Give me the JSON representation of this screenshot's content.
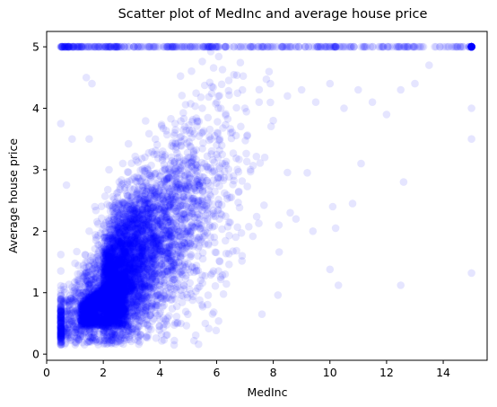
{
  "chart_data": {
    "type": "scatter",
    "title": "Scatter plot of MedInc and average house price",
    "xlabel": "MedInc",
    "ylabel": "Average house price",
    "xlim": [
      0.0,
      15.55
    ],
    "ylim": [
      -0.1,
      5.25
    ],
    "xticks": [
      0,
      2,
      4,
      6,
      8,
      10,
      12,
      14
    ],
    "yticks": [
      0,
      1,
      2,
      3,
      4,
      5
    ],
    "marker_color": "#0000ff",
    "marker_alpha": 0.1,
    "grid": false,
    "legend": "none",
    "points": {
      "x": [
        0.5,
        0.5,
        0.5,
        0.6,
        0.7,
        0.9,
        1.1,
        1.3,
        1.4,
        1.5,
        1.5,
        1.5,
        1.6,
        1.7,
        1.8,
        2.0,
        2.2,
        2.3,
        2.5,
        2.6,
        2.8,
        3.0,
        3.2,
        3.5,
        3.8,
        4.0,
        4.3,
        4.5,
        5.0,
        5.5,
        5.8,
        6.0,
        6.5,
        7.0,
        7.5,
        8.0,
        8.5,
        9.0,
        9.5,
        10.0,
        10.5,
        11.0,
        11.5,
        12.0,
        12.5,
        13.0,
        13.5,
        14.0,
        14.5,
        15.0,
        0.6,
        0.8,
        1.0,
        1.2,
        1.9,
        2.1,
        2.4,
        2.7,
        2.9,
        3.1,
        3.3,
        3.6,
        3.9,
        4.2,
        4.6,
        4.9,
        5.3,
        5.7,
        6.2,
        6.6,
        7.2,
        7.7,
        1.0,
        1.5,
        2.0,
        2.5,
        3.0,
        3.5,
        4.0,
        1.2,
        1.8,
        2.3,
        2.8,
        3.3,
        3.8,
        4.4,
        5.1,
        5.6,
        6.1,
        1.4,
        2.2,
        2.9,
        3.7,
        4.8,
        5.4,
        6.3,
        6.9,
        7.6,
        8.2,
        8.8,
        9.4,
        10.1,
        10.2,
        10.8,
        11.1,
        12.5,
        15.0,
        15.0,
        15.0,
        15.0,
        15.0,
        10.0,
        10.3,
        9.2,
        8.6,
        12.6,
        14.9,
        7.9,
        5.6,
        4.5
      ],
      "y": [
        3.75,
        1.62,
        0.15,
        0.55,
        2.75,
        3.5,
        1.0,
        0.6,
        4.5,
        3.5,
        2.0,
        0.7,
        4.4,
        2.4,
        1.1,
        1.5,
        3.0,
        1.2,
        1.8,
        1.3,
        2.2,
        2.0,
        1.9,
        2.5,
        2.2,
        2.9,
        2.4,
        3.1,
        3.2,
        2.8,
        3.5,
        3.4,
        3.6,
        4.0,
        4.1,
        3.8,
        4.2,
        4.3,
        4.1,
        4.4,
        4.0,
        4.3,
        4.1,
        3.9,
        4.3,
        4.4,
        4.7,
        5.0,
        5.0,
        5.0,
        1.1,
        0.8,
        0.7,
        0.9,
        1.4,
        1.6,
        1.5,
        1.7,
        2.1,
        1.9,
        2.3,
        2.0,
        2.6,
        2.1,
        2.7,
        2.5,
        2.8,
        3.0,
        3.1,
        2.9,
        3.0,
        3.2,
        0.5,
        0.6,
        0.9,
        1.1,
        1.4,
        1.0,
        1.7,
        0.45,
        0.55,
        0.8,
        1.0,
        1.2,
        1.3,
        1.5,
        1.6,
        2.0,
        2.2,
        0.35,
        0.45,
        0.6,
        0.75,
        0.95,
        1.1,
        1.3,
        1.6,
        0.65,
        2.1,
        2.2,
        2.0,
        2.4,
        2.05,
        2.45,
        3.1,
        1.12,
        1.32,
        3.5,
        4.0,
        5.0,
        5.0,
        1.38,
        1.12,
        2.95,
        2.3,
        2.8,
        5.0,
        4.4,
        0.5,
        0.15
      ],
      "capped_value": 5.0,
      "capped_x_range": [
        0.5,
        15.0
      ]
    }
  }
}
